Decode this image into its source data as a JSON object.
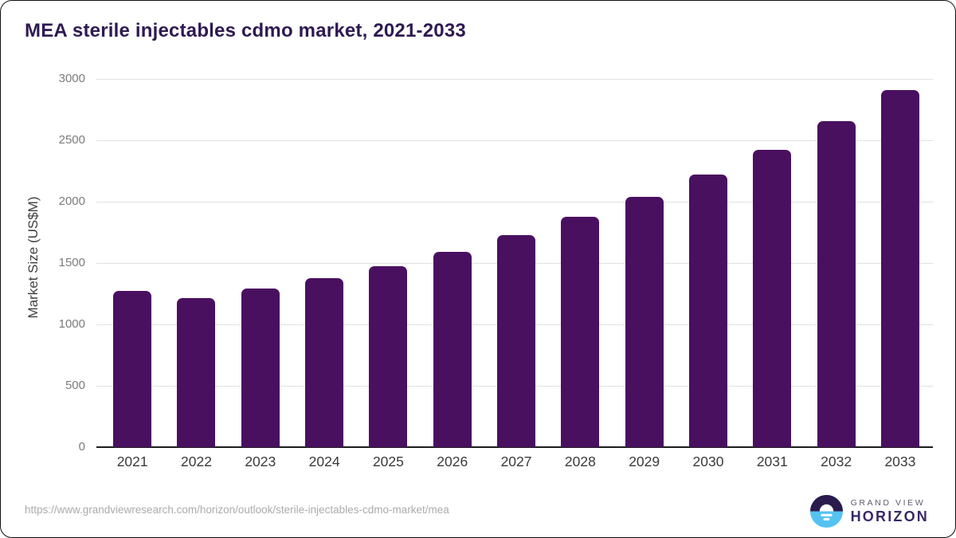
{
  "header": {
    "title": "MEA sterile injectables cdmo market, 2021-2033"
  },
  "chart_data": {
    "type": "bar",
    "title": "MEA sterile injectables cdmo market, 2021-2033",
    "categories": [
      "2021",
      "2022",
      "2023",
      "2024",
      "2025",
      "2026",
      "2027",
      "2028",
      "2029",
      "2030",
      "2031",
      "2032",
      "2033"
    ],
    "values": [
      1275,
      1215,
      1290,
      1375,
      1475,
      1590,
      1730,
      1875,
      2040,
      2220,
      2420,
      2655,
      2910
    ],
    "xlabel": "",
    "ylabel": "Market Size (US$M)",
    "ylim": [
      0,
      3000
    ],
    "ytick_step": 500,
    "grid": "horizontal-light",
    "legend": "none",
    "bar_color": "#4a1060"
  },
  "footer": {
    "source_url": "https://www.grandviewresearch.com/horizon/outlook/sterile-injectables-cdmo-market/mea",
    "logo": {
      "line1": "GRAND VIEW",
      "line2": "HORIZON"
    }
  },
  "colors": {
    "title": "#2e1a52",
    "bar": "#4a1060",
    "gridline": "#e0e0e0",
    "axis_line": "#1c1c1c",
    "y_tick_text": "#7b7b7b",
    "x_tick_text": "#3a3a3a",
    "source_text": "#ababab",
    "logo_dark": "#2b1b4d",
    "logo_blue": "#54c3f1"
  }
}
